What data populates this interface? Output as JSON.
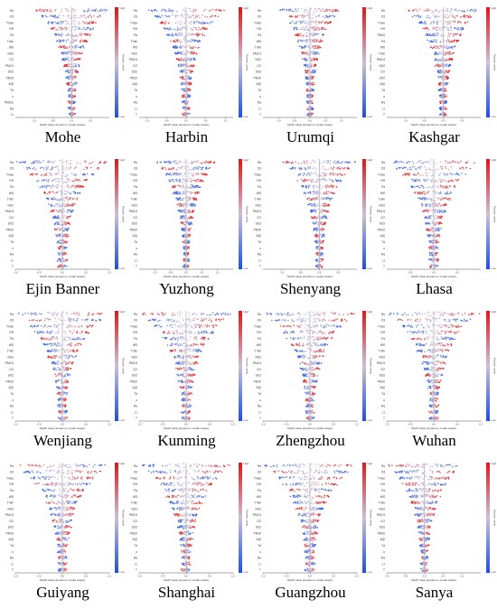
{
  "figure": {
    "colors": {
      "low": "#1f4fe0",
      "high": "#e0161b",
      "mid": "#c9c0d6",
      "axis": "#555555",
      "zero_line": "#9a9a9a"
    },
    "colorbar": {
      "title": "Feature value",
      "low_label": "Low",
      "high_label": "High"
    },
    "xlabel": "SHAP value (impact on model output)"
  },
  "chart_data": [
    {
      "type": "scatter",
      "subtype": "shap-beeswarm",
      "city": "Mohe",
      "xlabel": "SHAP value (impact on model output)",
      "colorbar": "Feature value",
      "features": [
        "Rs",
        "O3",
        "Tmax",
        "RH",
        "Pa",
        "Tmin",
        "WS",
        "NO2",
        "CO",
        "PM2.5",
        "SO2",
        "PM10",
        "AQI",
        "Td",
        "u",
        "PM10e",
        "Ra",
        "Lr"
      ],
      "xlim": [
        -1.5,
        1.0
      ],
      "xticks": [
        -1.0,
        -0.5,
        0.0,
        0.5
      ]
    },
    {
      "type": "scatter",
      "subtype": "shap-beeswarm",
      "city": "Harbin",
      "xlabel": "SHAP value (impact on model output)",
      "colorbar": "Feature value",
      "features": [
        "Rs",
        "O3",
        "Tmax",
        "RH",
        "Pa",
        "Tmin",
        "WS",
        "NO2",
        "PM2.5",
        "CO",
        "SO2",
        "PM10",
        "AQI",
        "Td",
        "u",
        "Ra",
        "Lr",
        "T"
      ],
      "xlim": [
        -1.2,
        1.2
      ],
      "xticks": [
        -1.0,
        -0.5,
        0.0,
        0.5,
        1.0
      ]
    },
    {
      "type": "scatter",
      "subtype": "shap-beeswarm",
      "city": "Urumqi",
      "xlabel": "SHAP value (impact on model output)",
      "colorbar": "Feature value",
      "features": [
        "Rs",
        "O3",
        "Tmax",
        "RH",
        "Pa",
        "WS",
        "Tmin",
        "PM2.5",
        "NO2",
        "CO",
        "SO2",
        "PM10",
        "AQI",
        "Td",
        "u",
        "Ra",
        "Lr",
        "T"
      ],
      "xlim": [
        -1.5,
        1.5
      ],
      "xticks": [
        -1.0,
        -0.5,
        0.0,
        0.5,
        1.0
      ]
    },
    {
      "type": "scatter",
      "subtype": "shap-beeswarm",
      "city": "Kashgar",
      "xlabel": "SHAP value (impact on model output)",
      "colorbar": "Feature value",
      "features": [
        "Rs",
        "O3",
        "Tmax",
        "RH",
        "PM10",
        "Pa",
        "WS",
        "Tmin",
        "PM2.5",
        "NO2",
        "CO",
        "SO2",
        "AQI",
        "Td",
        "u",
        "Ra",
        "Lr",
        "T"
      ],
      "xlim": [
        -1.5,
        1.0
      ],
      "xticks": [
        -1.0,
        -0.5,
        0.0,
        0.5
      ]
    },
    {
      "type": "scatter",
      "subtype": "shap-beeswarm",
      "city": "Ejin Banner",
      "xlabel": "SHAP value (impact on model output)",
      "colorbar": "Feature value",
      "features": [
        "Rs",
        "O3",
        "Tmax",
        "RH",
        "Pa",
        "WS",
        "Tmin",
        "NO2",
        "PM2.5",
        "CO",
        "SO2",
        "PM10",
        "AQI",
        "Td",
        "u",
        "Ra",
        "Lr",
        "T"
      ],
      "xlim": [
        -1.0,
        1.0
      ],
      "xticks": [
        -1.0,
        -0.5,
        0.0,
        0.5,
        1.0
      ]
    },
    {
      "type": "scatter",
      "subtype": "shap-beeswarm",
      "city": "Yuzhong",
      "xlabel": "SHAP value (impact on model output)",
      "colorbar": "Feature value",
      "features": [
        "Rs",
        "O3",
        "Tmax",
        "RH",
        "Pa",
        "WS",
        "Tmin",
        "NO2",
        "PM2.5",
        "CO",
        "SO2",
        "PM10",
        "AQI",
        "Td",
        "u",
        "Ra",
        "Lr",
        "T"
      ],
      "xlim": [
        -1.5,
        1.5
      ],
      "xticks": [
        -1.0,
        -0.5,
        0.0,
        0.5,
        1.0
      ]
    },
    {
      "type": "scatter",
      "subtype": "shap-beeswarm",
      "city": "Shenyang",
      "xlabel": "SHAP value (impact on model output)",
      "colorbar": "Feature value",
      "features": [
        "Rs",
        "O3",
        "Tmax",
        "RH",
        "Pa",
        "WS",
        "Tmin",
        "NO2",
        "PM2.5",
        "CO",
        "SO2",
        "PM10",
        "AQI",
        "Td",
        "u",
        "Ra",
        "Lr",
        "T"
      ],
      "xlim": [
        -1.5,
        1.0
      ],
      "xticks": [
        -1.0,
        -0.5,
        0.0,
        0.5
      ]
    },
    {
      "type": "scatter",
      "subtype": "shap-beeswarm",
      "city": "Lhasa",
      "xlabel": "SHAP value (impact on model output)",
      "colorbar": "Feature value",
      "features": [
        "Rs",
        "O3",
        "Tmax",
        "RH",
        "Pa",
        "WS",
        "Tmin",
        "NO2",
        "PM2.5",
        "CO",
        "SO2",
        "PM10",
        "AQI",
        "Td",
        "u",
        "Ra",
        "Lr",
        "T"
      ],
      "xlim": [
        -1.0,
        1.0
      ],
      "xticks": [
        -0.5,
        0.0,
        0.5
      ]
    },
    {
      "type": "scatter",
      "subtype": "shap-beeswarm",
      "city": "Wenjiang",
      "xlabel": "SHAP value (impact on model output)",
      "colorbar": "Feature value",
      "features": [
        "Rs",
        "O3",
        "Tmax",
        "RH",
        "Pa",
        "WS",
        "Tmin",
        "NO2",
        "PM2.5",
        "CO",
        "SO2",
        "PM10",
        "AQI",
        "Td",
        "u",
        "Ra",
        "Lr",
        "T"
      ],
      "xlim": [
        -1.0,
        1.0
      ],
      "xticks": [
        -1.0,
        -0.5,
        0.0,
        0.5,
        1.0
      ]
    },
    {
      "type": "scatter",
      "subtype": "shap-beeswarm",
      "city": "Kunming",
      "xlabel": "SHAP value (impact on model output)",
      "colorbar": "Feature value",
      "features": [
        "Rs",
        "O3",
        "Tmax",
        "RH",
        "Pa",
        "WS",
        "Tmin",
        "NO2",
        "PM2.5",
        "CO",
        "SO2",
        "PM10",
        "AQI",
        "Td",
        "u",
        "Ra",
        "Lr",
        "T"
      ],
      "xlim": [
        -1.0,
        1.0
      ],
      "xticks": [
        -1.0,
        -0.5,
        0.0,
        0.5,
        1.0
      ]
    },
    {
      "type": "scatter",
      "subtype": "shap-beeswarm",
      "city": "Zhengzhou",
      "xlabel": "SHAP value (impact on model output)",
      "colorbar": "Feature value",
      "features": [
        "Rs",
        "O3",
        "Tmax",
        "RH",
        "Pa",
        "WS",
        "Tmin",
        "NO2",
        "PM2.5",
        "CO",
        "SO2",
        "PM10",
        "AQI",
        "Td",
        "u",
        "Ra",
        "Lr",
        "T"
      ],
      "xlim": [
        -1.0,
        1.0
      ],
      "xticks": [
        -1.0,
        -0.5,
        0.0,
        0.5,
        1.0
      ]
    },
    {
      "type": "scatter",
      "subtype": "shap-beeswarm",
      "city": "Wuhan",
      "xlabel": "SHAP value (impact on model output)",
      "colorbar": "Feature value",
      "features": [
        "Rs",
        "O3",
        "Tmax",
        "RH",
        "Pa",
        "WS",
        "Tmin",
        "NO2",
        "PM2.5",
        "CO",
        "SO2",
        "PM10",
        "AQI",
        "Td",
        "u",
        "Ra",
        "Lr",
        "T"
      ],
      "xlim": [
        -1.0,
        1.0
      ],
      "xticks": [
        -1.0,
        -0.5,
        0.0,
        0.5,
        1.0
      ]
    },
    {
      "type": "scatter",
      "subtype": "shap-beeswarm",
      "city": "Guiyang",
      "xlabel": "SHAP value (impact on model output)",
      "colorbar": "Feature value",
      "features": [
        "Rs",
        "O3",
        "Tmax",
        "RH",
        "Pa",
        "WS",
        "Tmin",
        "NO2",
        "PM2.5",
        "CO",
        "SO2",
        "PM10",
        "AQI",
        "Td",
        "u",
        "Ra",
        "Lr",
        "T"
      ],
      "xlim": [
        -1.0,
        1.0
      ],
      "xticks": [
        -1.0,
        -0.5,
        0.0,
        0.5,
        1.0
      ]
    },
    {
      "type": "scatter",
      "subtype": "shap-beeswarm",
      "city": "Shanghai",
      "xlabel": "SHAP value (impact on model output)",
      "colorbar": "Feature value",
      "features": [
        "Rs",
        "O3",
        "Tmax",
        "RH",
        "Pa",
        "WS",
        "Tmin",
        "NO2",
        "PM2.5",
        "CO",
        "SO2",
        "PM10",
        "AQI",
        "Td",
        "u",
        "Ra",
        "Lr",
        "T"
      ],
      "xlim": [
        -1.0,
        1.0
      ],
      "xticks": [
        -1.0,
        -0.5,
        0.0,
        0.5,
        1.0
      ]
    },
    {
      "type": "scatter",
      "subtype": "shap-beeswarm",
      "city": "Guangzhou",
      "xlabel": "SHAP value (impact on model output)",
      "colorbar": "Feature value",
      "features": [
        "Rs",
        "O3",
        "Tmax",
        "RH",
        "Pa",
        "WS",
        "Tmin",
        "NO2",
        "PM2.5",
        "CO",
        "SO2",
        "PM10",
        "AQI",
        "Td",
        "u",
        "Ra",
        "Lr",
        "T"
      ],
      "xlim": [
        -1.0,
        1.0
      ],
      "xticks": [
        -1.0,
        -0.5,
        0.0,
        0.5,
        1.0
      ]
    },
    {
      "type": "scatter",
      "subtype": "shap-beeswarm",
      "city": "Sanya",
      "xlabel": "SHAP value (impact on model output)",
      "colorbar": "Feature value",
      "features": [
        "Rs",
        "O3",
        "Tmax",
        "RH",
        "Pa",
        "WS",
        "Tmin",
        "NO2",
        "PM2.5",
        "CO",
        "SO2",
        "PM10",
        "AQI",
        "Td",
        "u",
        "Ra",
        "Lr",
        "T"
      ],
      "xlim": [
        -1.0,
        1.5
      ],
      "xticks": [
        -1.0,
        -0.5,
        0.0,
        0.5,
        1.0
      ]
    }
  ]
}
